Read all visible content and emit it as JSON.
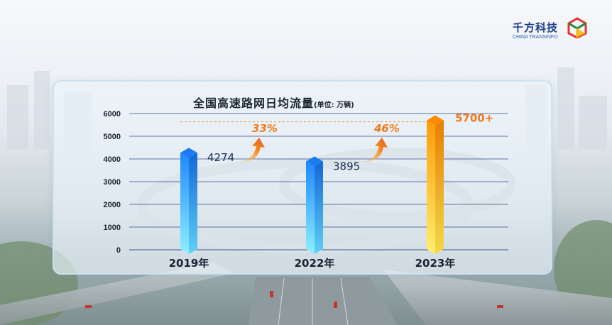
{
  "brand": {
    "name_cn": "千方科技",
    "name_en": "CHINA TRANSINFO"
  },
  "title": "全国高速路网日均流量",
  "unit": "(单位: 万辆)",
  "chart_data": {
    "type": "bar",
    "title": "全国高速路网日均流量",
    "unit": "(单位: 万辆)",
    "categories": [
      "2019年",
      "2022年",
      "2023年"
    ],
    "values": [
      4274,
      3895,
      5700
    ],
    "value_labels": [
      "4274",
      "3895",
      "5700+"
    ],
    "growth_labels": [
      "33%",
      "46%"
    ],
    "ylim": [
      0,
      6000
    ],
    "yticks": [
      0,
      1000,
      2000,
      3000,
      4000,
      5000,
      6000
    ],
    "grid": true,
    "colors": {
      "bar_blue_top": "#1e88ff",
      "bar_blue_bottom": "#8ef0ff",
      "bar_orange_top": "#ff9a0a",
      "bar_orange_bottom": "#fff06a",
      "grid": "#3a4a8c",
      "accent": "#f07a1a"
    }
  }
}
